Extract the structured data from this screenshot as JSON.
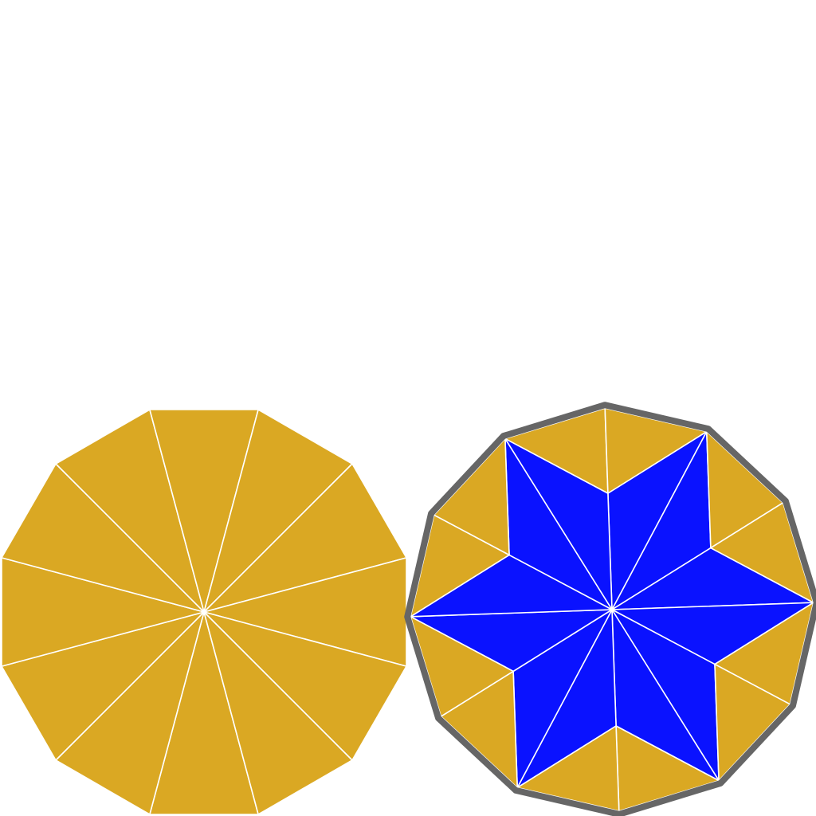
{
  "figures": [
    {
      "name": "plain-dodecagon",
      "sides": 12,
      "fill": "#DAA823",
      "line_color": "#FFFFFF",
      "outline": false,
      "star": null
    },
    {
      "name": "star-dodecagon",
      "sides": 12,
      "fill": "#DAA823",
      "line_color": "#FFFFFF",
      "outline": true,
      "outline_color": "#666666",
      "star": {
        "points": 6,
        "fill": "#0A12FF"
      }
    }
  ]
}
